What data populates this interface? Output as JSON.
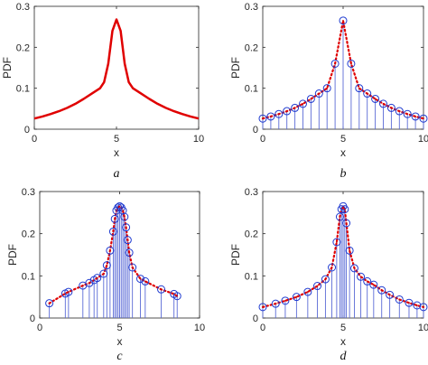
{
  "chart_data": [
    {
      "panel": "a",
      "type": "line",
      "caption": "a",
      "xlabel": "x",
      "ylabel": "PDF",
      "xlim": [
        0,
        10
      ],
      "ylim": [
        0,
        0.3
      ],
      "xticks": [
        "0",
        "5",
        "10"
      ],
      "yticks": [
        "0",
        "0.1",
        "0.2",
        "0.3"
      ],
      "line_color": "#e00000",
      "series": [
        {
          "x": [
            0,
            0.5,
            1,
            1.5,
            2,
            2.5,
            3,
            3.5,
            4,
            4.25,
            4.5,
            4.75,
            5,
            5.25,
            5.5,
            5.75,
            6,
            6.5,
            7,
            7.5,
            8,
            8.5,
            9,
            9.5,
            10
          ],
          "y": [
            0.026,
            0.031,
            0.037,
            0.044,
            0.052,
            0.062,
            0.074,
            0.087,
            0.1,
            0.115,
            0.16,
            0.24,
            0.268,
            0.24,
            0.16,
            0.115,
            0.1,
            0.087,
            0.074,
            0.062,
            0.052,
            0.044,
            0.037,
            0.031,
            0.026
          ]
        }
      ]
    },
    {
      "panel": "b",
      "type": "scatter",
      "caption": "b",
      "xlabel": "x",
      "ylabel": "PDF",
      "xlim": [
        0,
        10
      ],
      "ylim": [
        0,
        0.3
      ],
      "xticks": [
        "0",
        "5",
        "10"
      ],
      "yticks": [
        "0",
        "0.1",
        "0.2",
        "0.3"
      ],
      "samples": {
        "x": [
          0,
          0.5,
          1,
          1.5,
          2,
          2.5,
          3,
          3.5,
          4,
          4.5,
          5,
          5.5,
          6,
          6.5,
          7,
          7.5,
          8,
          8.5,
          9,
          9.5,
          10
        ],
        "y": [
          0.026,
          0.031,
          0.037,
          0.044,
          0.052,
          0.062,
          0.074,
          0.087,
          0.1,
          0.16,
          0.265,
          0.16,
          0.1,
          0.087,
          0.074,
          0.062,
          0.052,
          0.044,
          0.037,
          0.031,
          0.026
        ]
      }
    },
    {
      "panel": "c",
      "type": "scatter",
      "caption": "c",
      "xlabel": "x",
      "ylabel": "PDF",
      "xlim": [
        0,
        10
      ],
      "ylim": [
        0,
        0.3
      ],
      "xticks": [
        "0",
        "5",
        "10"
      ],
      "yticks": [
        "0",
        "0.1",
        "0.2",
        "0.3"
      ],
      "samples": {
        "x": [
          0.6,
          1.6,
          1.8,
          2.7,
          3.1,
          3.4,
          3.6,
          4.0,
          4.2,
          4.4,
          4.6,
          4.7,
          4.8,
          4.9,
          5.0,
          5.1,
          5.2,
          5.3,
          5.4,
          5.5,
          5.6,
          5.8,
          6.3,
          6.6,
          7.6,
          8.4,
          8.6
        ],
        "y": [
          0.035,
          0.058,
          0.062,
          0.077,
          0.083,
          0.09,
          0.095,
          0.105,
          0.125,
          0.16,
          0.205,
          0.235,
          0.255,
          0.262,
          0.265,
          0.262,
          0.255,
          0.24,
          0.215,
          0.185,
          0.155,
          0.12,
          0.093,
          0.087,
          0.068,
          0.057,
          0.052
        ]
      }
    },
    {
      "panel": "d",
      "type": "scatter",
      "caption": "d",
      "xlabel": "x",
      "ylabel": "PDF",
      "xlim": [
        0,
        10
      ],
      "ylim": [
        0,
        0.3
      ],
      "xticks": [
        "0",
        "5",
        "10"
      ],
      "yticks": [
        "0",
        "0.1",
        "0.2",
        "0.3"
      ],
      "samples": {
        "x": [
          0,
          0.8,
          1.4,
          2.1,
          2.8,
          3.4,
          3.9,
          4.3,
          4.6,
          4.8,
          4.9,
          5.0,
          5.1,
          5.2,
          5.4,
          5.7,
          6.1,
          6.5,
          6.9,
          7.4,
          7.9,
          8.5,
          9.1,
          9.6,
          10
        ],
        "y": [
          0.026,
          0.034,
          0.041,
          0.05,
          0.062,
          0.076,
          0.092,
          0.12,
          0.18,
          0.24,
          0.258,
          0.265,
          0.258,
          0.225,
          0.16,
          0.118,
          0.098,
          0.087,
          0.079,
          0.066,
          0.055,
          0.044,
          0.036,
          0.03,
          0.026
        ]
      }
    }
  ],
  "colors": {
    "curve": "#e00000",
    "dotted_curve": "#e00000",
    "stem": "#5b6bd6",
    "marker": "#1f3bd0",
    "marker_dot": "#d00000"
  }
}
